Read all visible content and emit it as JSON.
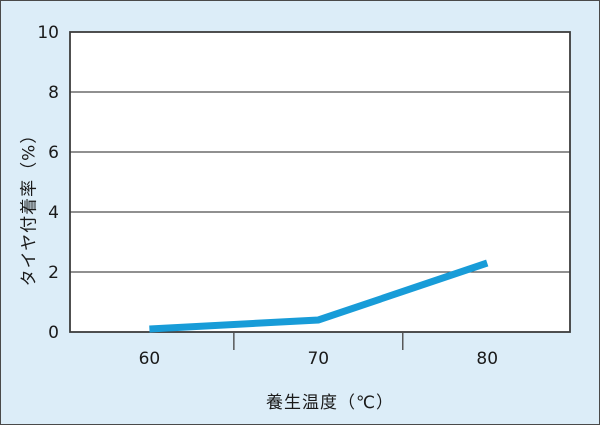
{
  "chart_data": {
    "type": "line",
    "title": "",
    "xlabel": "養生温度（℃）",
    "ylabel": "タイヤ付着率（%）",
    "x": [
      60,
      70,
      80
    ],
    "y": [
      0.1,
      0.4,
      2.3
    ],
    "xlim": [
      55.3,
      84.9
    ],
    "ylim": [
      0,
      10
    ],
    "yticks": [
      0,
      2,
      4,
      6,
      8,
      10
    ],
    "xticks": [
      60,
      70,
      80
    ],
    "xticks_minor": [
      65,
      75
    ],
    "grid": "horizontal-only",
    "legend": "none"
  },
  "colors": {
    "page_background": "#DCEDF8",
    "plot_background": "#FFFFFF",
    "line": "#189CD8",
    "grid": "#4D4D4D",
    "axis_border": "#3C3C3C",
    "outer_border": "#4A4A4A",
    "text": "#1A1A1A"
  }
}
